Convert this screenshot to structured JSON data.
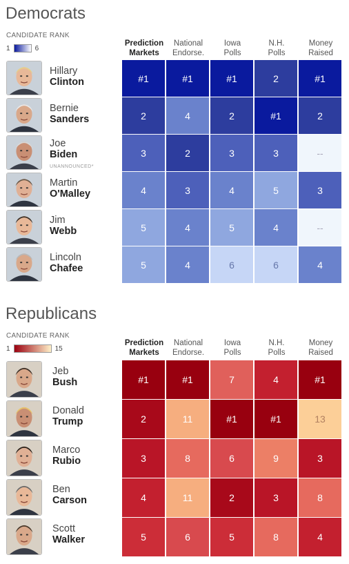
{
  "rank_label": "CANDIDATE RANK",
  "columns": [
    {
      "line1": "Prediction",
      "line2": "Markets",
      "bold": true
    },
    {
      "line1": "National",
      "line2": "Endorse.",
      "bold": false
    },
    {
      "line1": "Iowa",
      "line2": "Polls",
      "bold": false
    },
    {
      "line1": "N.H.",
      "line2": "Polls",
      "bold": false
    },
    {
      "line1": "Money",
      "line2": "Raised",
      "bold": false
    }
  ],
  "chart_data": [
    {
      "type": "heatmap",
      "title": "Democrats",
      "legend": {
        "label": "CANDIDATE RANK",
        "min": "1",
        "max": "6",
        "low_color": "#0a1a9e",
        "high_color": "#ffffff"
      },
      "columns": [
        "Prediction Markets",
        "National Endorse.",
        "Iowa Polls",
        "N.H. Polls",
        "Money Raised"
      ],
      "rows": [
        {
          "first": "Hillary",
          "last": "Clinton",
          "note": "",
          "values": [
            "#1",
            "#1",
            "#1",
            "2",
            "#1"
          ]
        },
        {
          "first": "Bernie",
          "last": "Sanders",
          "note": "",
          "values": [
            "2",
            "4",
            "2",
            "#1",
            "2"
          ]
        },
        {
          "first": "Joe",
          "last": "Biden",
          "note": "UNANNOUNCED*",
          "values": [
            "3",
            "2",
            "3",
            "3",
            "--"
          ]
        },
        {
          "first": "Martin",
          "last": "O'Malley",
          "note": "",
          "values": [
            "4",
            "3",
            "4",
            "5",
            "3"
          ]
        },
        {
          "first": "Jim",
          "last": "Webb",
          "note": "",
          "values": [
            "5",
            "4",
            "5",
            "4",
            "--"
          ]
        },
        {
          "first": "Lincoln",
          "last": "Chafee",
          "note": "",
          "values": [
            "5",
            "4",
            "6",
            "6",
            "4"
          ]
        }
      ]
    },
    {
      "type": "heatmap",
      "title": "Republicans",
      "legend": {
        "label": "CANDIDATE RANK",
        "min": "1",
        "max": "15",
        "low_color": "#9b0010",
        "high_color": "#fff1c9"
      },
      "columns": [
        "Prediction Markets",
        "National Endorse.",
        "Iowa Polls",
        "N.H. Polls",
        "Money Raised"
      ],
      "rows": [
        {
          "first": "Jeb",
          "last": "Bush",
          "note": "",
          "values": [
            "#1",
            "#1",
            "7",
            "4",
            "#1"
          ]
        },
        {
          "first": "Donald",
          "last": "Trump",
          "note": "",
          "values": [
            "2",
            "11",
            "#1",
            "#1",
            "13"
          ]
        },
        {
          "first": "Marco",
          "last": "Rubio",
          "note": "",
          "values": [
            "3",
            "8",
            "6",
            "9",
            "3"
          ]
        },
        {
          "first": "Ben",
          "last": "Carson",
          "note": "",
          "values": [
            "4",
            "11",
            "2",
            "3",
            "8"
          ]
        },
        {
          "first": "Scott",
          "last": "Walker",
          "note": "",
          "values": [
            "5",
            "6",
            "5",
            "8",
            "4"
          ]
        }
      ]
    }
  ]
}
